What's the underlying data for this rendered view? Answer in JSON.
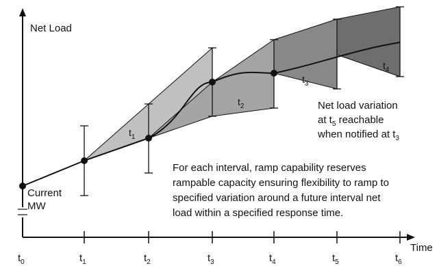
{
  "axes": {
    "y_label": "Net Load",
    "x_label": "Time"
  },
  "ticks": [
    {
      "base": "t",
      "sub": "0"
    },
    {
      "base": "t",
      "sub": "1"
    },
    {
      "base": "t",
      "sub": "2"
    },
    {
      "base": "t",
      "sub": "3"
    },
    {
      "base": "t",
      "sub": "4"
    },
    {
      "base": "t",
      "sub": "5"
    },
    {
      "base": "t",
      "sub": "6"
    }
  ],
  "regions": [
    {
      "base": "t",
      "sub": "1"
    },
    {
      "base": "t",
      "sub": "2"
    },
    {
      "base": "t",
      "sub": "3"
    },
    {
      "base": "t",
      "sub": "4"
    }
  ],
  "current_mw": {
    "line1": "Current",
    "line2": "MW"
  },
  "variation_note": {
    "line1": "Net load variation",
    "line2_pre": "at t",
    "line2_sub": "5",
    "line2_post": " reachable",
    "line3_pre": "when notified at t",
    "line3_sub": "3"
  },
  "description": [
    "For each interval, ramp capability reserves",
    "rampable capacity ensuring flexibility to ramp to",
    "specified variation around a future interval net",
    "load within a specified response time."
  ],
  "colors": {
    "fan_light": "#c0c0c0",
    "fan_mid": "#a4a4a4",
    "fan_dark": "#888888",
    "fan_darkest": "#6e6e6e"
  }
}
